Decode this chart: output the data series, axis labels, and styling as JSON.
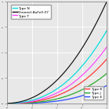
{
  "background_color": "#e8e8e8",
  "grid_color": "#ffffff",
  "legend1_entries": [
    "Type N",
    "Chromel-AuFe0.07",
    "Type T"
  ],
  "legend2_entries": [
    "Type K",
    "Type J",
    "Type E"
  ],
  "legend1_colors": [
    "#00dddd",
    "#111111",
    "#ff44ff"
  ],
  "legend2_colors": [
    "#ff3333",
    "#22aa22",
    "#2244ff"
  ],
  "curves": {
    "Chromel-AuFe0.07": {
      "color": "#111111",
      "a": 2.5,
      "b": 2.2,
      "c": 0.1
    },
    "Type N": {
      "color": "#00dddd",
      "a": 1.8,
      "b": 2.4,
      "c": 0.06
    },
    "Type T": {
      "color": "#ff44ff",
      "a": 1.4,
      "b": 2.5,
      "c": 0.04
    },
    "Type K": {
      "color": "#ff3333",
      "a": 1.1,
      "b": 2.6,
      "c": 0.03
    },
    "Type J": {
      "color": "#22aa22",
      "a": 0.75,
      "b": 2.8,
      "c": 0.015
    },
    "Type E": {
      "color": "#2244ff",
      "a": 0.45,
      "b": 3.0,
      "c": 0.005
    }
  },
  "plot_order": [
    "Type E",
    "Type J",
    "Type K",
    "Type T",
    "Type N",
    "Chromel-AuFe0.07"
  ],
  "xlim": [
    0,
    1
  ],
  "ylim": [
    0,
    1
  ]
}
